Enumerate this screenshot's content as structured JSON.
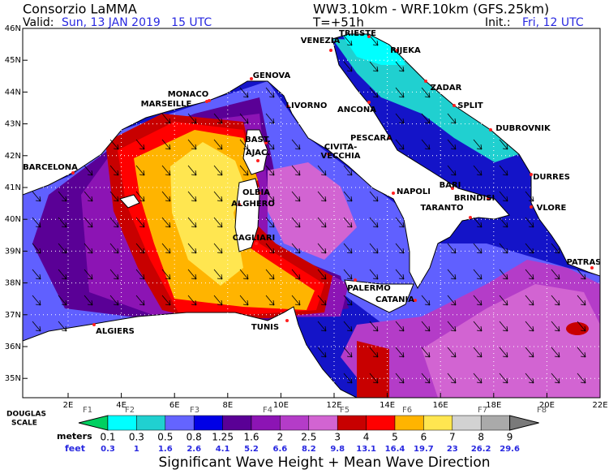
{
  "header": {
    "title": "Consorzio LaMMA",
    "valid_label": "Valid:",
    "valid": "Sun, 13 JAN 2019   15 UTC",
    "model": "WW3.10km - WRF.10km (GFS.25km)",
    "lead": "T=+51h",
    "init_label": "Init.:",
    "init": "Fri, 12 UTC"
  },
  "map": {
    "lat_labels": [
      "46N",
      "45N",
      "44N",
      "43N",
      "42N",
      "41N",
      "40N",
      "39N",
      "38N",
      "37N",
      "36N",
      "35N"
    ],
    "lon_labels": [
      "2E",
      "4E",
      "6E",
      "8E",
      "10E",
      "12E",
      "14E",
      "16E",
      "18E",
      "20E",
      "22E"
    ],
    "cities": [
      "TRIESTE",
      "VENEZIA",
      "RIJEKA",
      "GENOVA",
      "MONACO",
      "MARSEILLE",
      "LIVORNO",
      "ANCONA",
      "ZADAR",
      "SPLIT",
      "DUBROVNIK",
      "PESCARA",
      "BAST.",
      "AJAC.",
      "CIVITA-",
      "VECCHIA",
      "BARCELONA",
      "DURRES",
      "BARI",
      "OLBIA",
      "BRINDISI",
      "NAPOLI",
      "ALGHERO",
      "TARANTO",
      "VLORE",
      "CAGLIARI",
      "PATRAS",
      "PALERMO",
      "CATANIA",
      "TUNIS",
      "ALGIERS"
    ]
  },
  "legend": {
    "scale_label": [
      "DOUGLAS",
      "SCALE"
    ],
    "douglas": [
      "F1",
      "F2",
      "F3",
      "F4",
      "F5",
      "F6",
      "F7",
      "F8"
    ],
    "meters_label": "meters",
    "meters": [
      "0.1",
      "0.3",
      "0.5",
      "0.8",
      "1.25",
      "1.6",
      "2",
      "2.5",
      "3",
      "4",
      "5",
      "6",
      "7",
      "8",
      "9"
    ],
    "feet_label": "feet",
    "feet": [
      "0.3",
      "1",
      "1.6",
      "2.6",
      "4.1",
      "5.2",
      "6.6",
      "8.2",
      "9.8",
      "13.1",
      "16.4",
      "19.7",
      "23",
      "26.2",
      "29.6"
    ],
    "colors": [
      "#00d060",
      "#00ffff",
      "#20d0d0",
      "#6464ff",
      "#0000e6",
      "#5a0096",
      "#8c14b4",
      "#b43cc8",
      "#d264d2",
      "#c80000",
      "#ff0000",
      "#ffb400",
      "#ffe650",
      "#d2d2d2",
      "#aaaaaa",
      "#7a7a7a"
    ],
    "caption": "Significant Wave Height + Mean Wave Direction"
  }
}
